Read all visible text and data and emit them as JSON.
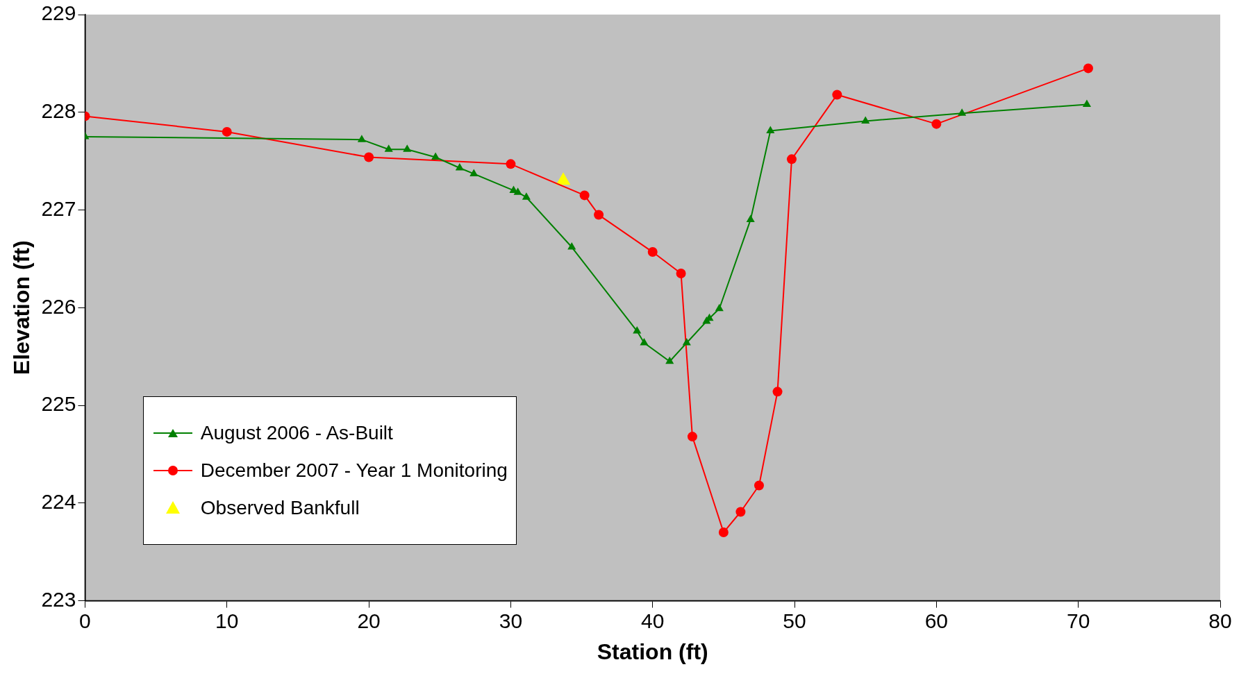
{
  "chart_data": {
    "type": "line",
    "xlabel": "Station (ft)",
    "ylabel": "Elevation (ft)",
    "xlim": [
      0,
      80
    ],
    "xticks": [
      0,
      10,
      20,
      30,
      40,
      50,
      60,
      70,
      80
    ],
    "ylim": [
      223,
      229
    ],
    "yticks": [
      223,
      224,
      225,
      226,
      227,
      228,
      229
    ],
    "grid": false,
    "legend": "bottom left",
    "series": [
      {
        "name": "August 2006 - As-Built",
        "color": "#008000",
        "marker": "triangle",
        "x": [
          0,
          19.5,
          21.4,
          22.7,
          24.7,
          26.4,
          27.4,
          30.2,
          30.5,
          31.1,
          34.3,
          38.9,
          39.4,
          41.2,
          42.4,
          43.8,
          44.0,
          44.7,
          46.9,
          48.3,
          55.0,
          61.8,
          70.6
        ],
        "values": [
          227.75,
          227.72,
          227.62,
          227.62,
          227.54,
          227.43,
          227.37,
          227.2,
          227.18,
          227.13,
          226.62,
          225.76,
          225.64,
          225.45,
          225.64,
          225.86,
          225.89,
          225.99,
          226.9,
          227.81,
          227.91,
          227.99,
          228.08
        ]
      },
      {
        "name": "December 2007 - Year 1 Monitoring",
        "color": "#ff0000",
        "marker": "circle",
        "x": [
          0,
          10,
          20,
          30,
          35.2,
          36.2,
          40.0,
          42.0,
          42.8,
          45.0,
          46.2,
          47.5,
          48.8,
          49.8,
          53.0,
          60.0,
          70.7
        ],
        "values": [
          227.96,
          227.8,
          227.54,
          227.47,
          227.15,
          226.95,
          226.57,
          226.35,
          224.68,
          223.7,
          223.91,
          224.18,
          225.14,
          227.52,
          228.18,
          227.88,
          228.45
        ]
      },
      {
        "name": "Observed Bankfull",
        "type": "scatter",
        "color": "#ffff00",
        "marker": "triangle",
        "x": [
          33.7
        ],
        "values": [
          227.3
        ]
      }
    ]
  }
}
